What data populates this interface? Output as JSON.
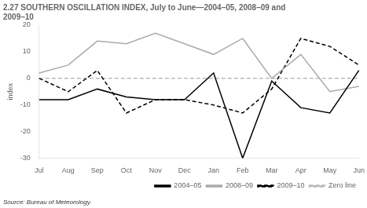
{
  "chart_data": {
    "type": "line",
    "title": "2.27 SOUTHERN OSCILLATION INDEX, July to June—2004–05, 2008–09 and\n2009–10",
    "y_label": "index",
    "annotations": [
      "Source: Bureau of Meteorology."
    ],
    "categories": [
      "Jul",
      "Aug",
      "Sep",
      "Oct",
      "Nov",
      "Dec",
      "Jan",
      "Feb",
      "Mar",
      "Apr",
      "May",
      "Jun"
    ],
    "series": [
      {
        "name": "2004–05",
        "color": "#000000",
        "line_style": "solid",
        "values": [
          -8,
          -8,
          -4,
          -7,
          -8,
          -8,
          2,
          -30,
          -1,
          -11,
          -13,
          3
        ]
      },
      {
        "name": "2008–09",
        "color": "#aaaaaa",
        "line_style": "solid",
        "values": [
          2,
          5,
          14,
          13,
          17,
          13,
          9,
          15,
          0,
          9,
          -5,
          -3
        ]
      },
      {
        "name": "2009–10",
        "color": "#000000",
        "line_style": "dashed",
        "values": [
          0,
          -5,
          3,
          -13,
          -8,
          -8,
          -10,
          -13,
          -4,
          15,
          12,
          5
        ]
      },
      {
        "name": "Zero line",
        "color": "#bbbbbb",
        "line_style": "dashed",
        "values": [
          0,
          0,
          0,
          0,
          0,
          0,
          0,
          0,
          0,
          0,
          0,
          0
        ]
      }
    ],
    "ylim": [
      -30,
      20
    ],
    "yticks": [
      -30,
      -20,
      -10,
      0,
      10,
      20
    ],
    "grid": false,
    "legend": "lower right"
  }
}
